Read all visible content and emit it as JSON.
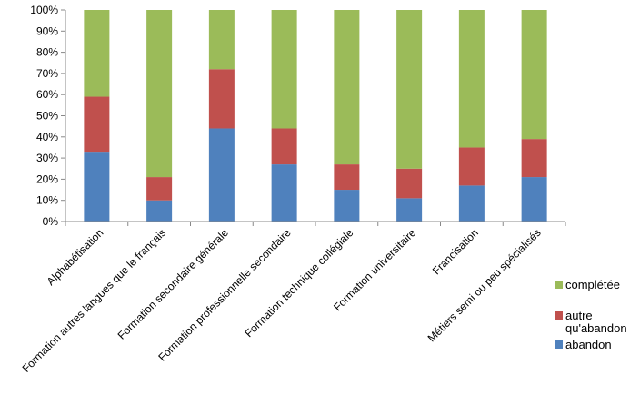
{
  "chart_data": {
    "type": "bar",
    "stacked": true,
    "normalized_percent": true,
    "title": "",
    "xlabel": "",
    "ylabel": "",
    "ylim": [
      0,
      100
    ],
    "yticks": [
      "0%",
      "10%",
      "20%",
      "30%",
      "40%",
      "50%",
      "60%",
      "70%",
      "80%",
      "90%",
      "100%"
    ],
    "grid": false,
    "legend_position": "right",
    "categories": [
      "Alphabétisation",
      "Formation autres langues que le français",
      "Formation secondaire générale",
      "Formation professionnelle secondaire",
      "Formation technique collégiale",
      "Formation universitaire",
      "Francisation",
      "Métiers semi ou peu spécialisés"
    ],
    "series": [
      {
        "name": "abandon",
        "color": "#4F81BD",
        "values": [
          33,
          10,
          44,
          27,
          15,
          11,
          17,
          21
        ]
      },
      {
        "name": "autre qu'abandon",
        "color": "#C0504D",
        "values": [
          26,
          11,
          28,
          17,
          12,
          14,
          18,
          18
        ]
      },
      {
        "name": "complétée",
        "color": "#9BBB59",
        "values": [
          41,
          79,
          28,
          56,
          73,
          75,
          65,
          61
        ]
      }
    ],
    "legend": [
      {
        "label": "complétée",
        "color": "#9BBB59"
      },
      {
        "label": "autre",
        "color": "#C0504D"
      },
      {
        "label": "qu'abandon",
        "color": ""
      },
      {
        "label": "abandon",
        "color": "#4F81BD"
      }
    ]
  }
}
